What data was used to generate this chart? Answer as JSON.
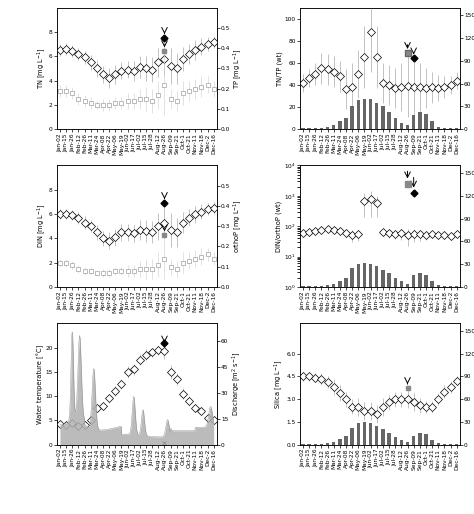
{
  "x_labels": [
    "Jan-02",
    "Jan-15",
    "Jan-26",
    "Feb-12",
    "Feb-26",
    "Mar-11",
    "Mar-24",
    "Apr-08",
    "Apr-22",
    "May-06",
    "May-19",
    "Jun-02",
    "Jun-17",
    "Jul-02",
    "Jul-15",
    "Jul-28",
    "Aug-12",
    "Aug-26",
    "Sep-09",
    "Sep-21",
    "Oct-1",
    "Oct-21",
    "Nov-11",
    "Nov-18",
    "Dec-2",
    "Dec-16"
  ],
  "n": 26,
  "TN": [
    6.5,
    6.6,
    6.4,
    6.2,
    5.9,
    5.5,
    5.0,
    4.5,
    4.2,
    4.5,
    4.8,
    4.9,
    4.8,
    5.1,
    5.0,
    4.9,
    5.5,
    5.8,
    5.2,
    5.0,
    5.8,
    6.2,
    6.5,
    6.8,
    7.0,
    7.2
  ],
  "TN_err": [
    0.5,
    0.5,
    0.5,
    0.5,
    0.5,
    0.6,
    0.7,
    0.7,
    0.8,
    0.8,
    0.7,
    0.7,
    0.8,
    0.9,
    1.0,
    1.0,
    1.2,
    1.4,
    1.5,
    1.3,
    1.0,
    0.8,
    0.8,
    0.7,
    0.6,
    0.5
  ],
  "TP": [
    0.19,
    0.19,
    0.18,
    0.15,
    0.14,
    0.13,
    0.12,
    0.12,
    0.12,
    0.13,
    0.13,
    0.14,
    0.14,
    0.15,
    0.15,
    0.14,
    0.17,
    0.22,
    0.15,
    0.14,
    0.18,
    0.19,
    0.2,
    0.21,
    0.22,
    0.2
  ],
  "TP_err": [
    0.03,
    0.03,
    0.03,
    0.03,
    0.03,
    0.03,
    0.02,
    0.03,
    0.03,
    0.03,
    0.03,
    0.04,
    0.04,
    0.05,
    0.06,
    0.06,
    0.07,
    0.15,
    0.05,
    0.05,
    0.06,
    0.05,
    0.05,
    0.05,
    0.04,
    0.04
  ],
  "DIN": [
    6.0,
    6.0,
    5.9,
    5.7,
    5.3,
    5.0,
    4.5,
    4.0,
    3.8,
    4.1,
    4.5,
    4.5,
    4.4,
    4.7,
    4.6,
    4.5,
    5.0,
    5.3,
    4.7,
    4.5,
    5.3,
    5.7,
    6.0,
    6.2,
    6.4,
    6.5
  ],
  "DIN_err": [
    0.4,
    0.4,
    0.4,
    0.5,
    0.5,
    0.5,
    0.6,
    0.6,
    0.7,
    0.7,
    0.7,
    0.7,
    0.7,
    0.8,
    0.9,
    0.9,
    1.1,
    1.3,
    1.4,
    1.2,
    0.9,
    0.7,
    0.7,
    0.6,
    0.5,
    0.5
  ],
  "orthoP": [
    0.12,
    0.12,
    0.11,
    0.09,
    0.08,
    0.08,
    0.07,
    0.07,
    0.07,
    0.08,
    0.08,
    0.08,
    0.08,
    0.09,
    0.09,
    0.09,
    0.11,
    0.14,
    0.1,
    0.09,
    0.12,
    0.13,
    0.14,
    0.15,
    0.16,
    0.14
  ],
  "orthoP_err": [
    0.02,
    0.02,
    0.02,
    0.02,
    0.02,
    0.02,
    0.01,
    0.02,
    0.02,
    0.02,
    0.02,
    0.03,
    0.03,
    0.04,
    0.05,
    0.05,
    0.06,
    0.1,
    0.04,
    0.04,
    0.05,
    0.04,
    0.04,
    0.04,
    0.03,
    0.03
  ],
  "WaterTemp": [
    4.2,
    4.0,
    4.5,
    3.8,
    4.0,
    5.0,
    7.5,
    8.0,
    9.5,
    11.0,
    12.5,
    15.0,
    15.5,
    17.5,
    18.5,
    19.0,
    19.5,
    19.2,
    15.0,
    13.5,
    10.5,
    9.0,
    7.5,
    7.0,
    5.5,
    5.0
  ],
  "WaterTemp_err": [
    0.3,
    0.3,
    0.4,
    0.3,
    0.4,
    0.5,
    0.8,
    0.8,
    0.9,
    1.0,
    1.1,
    1.2,
    1.2,
    1.2,
    1.1,
    1.0,
    1.0,
    1.5,
    1.4,
    1.3,
    1.1,
    1.0,
    0.8,
    0.7,
    0.5,
    0.4
  ],
  "TNTP": [
    42,
    46,
    50,
    55,
    54,
    52,
    48,
    36,
    38,
    50,
    65,
    88,
    65,
    42,
    40,
    37,
    38,
    39,
    38,
    38,
    37,
    38,
    37,
    38,
    40,
    44
  ],
  "TNTP_err": [
    8,
    8,
    10,
    14,
    14,
    14,
    14,
    18,
    22,
    22,
    28,
    36,
    28,
    18,
    18,
    18,
    22,
    28,
    24,
    22,
    18,
    14,
    12,
    10,
    8,
    8
  ],
  "Chla_TNTP": [
    1,
    1,
    1,
    1,
    3,
    6,
    10,
    15,
    30,
    38,
    40,
    40,
    35,
    30,
    22,
    15,
    8,
    5,
    18,
    22,
    20,
    10,
    3,
    1,
    1,
    1
  ],
  "DINorthoP": [
    60,
    65,
    68,
    75,
    78,
    75,
    70,
    58,
    52,
    55,
    700,
    800,
    600,
    65,
    58,
    55,
    58,
    52,
    55,
    55,
    52,
    55,
    52,
    50,
    48,
    55
  ],
  "DINorthoP_err": [
    10,
    12,
    12,
    16,
    14,
    14,
    14,
    18,
    22,
    22,
    500,
    600,
    400,
    18,
    18,
    18,
    22,
    30,
    26,
    22,
    18,
    14,
    12,
    10,
    8,
    8
  ],
  "Chla_DINorthoP": [
    1,
    1,
    1,
    1,
    2,
    4,
    8,
    12,
    25,
    30,
    32,
    30,
    28,
    22,
    18,
    12,
    8,
    4,
    15,
    18,
    16,
    8,
    2,
    1,
    1,
    1
  ],
  "Silica": [
    4.5,
    4.5,
    4.4,
    4.3,
    4.1,
    3.8,
    3.4,
    3.0,
    2.5,
    2.5,
    2.2,
    2.2,
    2.0,
    2.5,
    2.8,
    3.0,
    3.0,
    3.0,
    2.8,
    2.6,
    2.5,
    2.5,
    3.0,
    3.5,
    3.8,
    4.2
  ],
  "Silica_err": [
    0.3,
    0.3,
    0.3,
    0.4,
    0.4,
    0.5,
    0.5,
    0.5,
    0.5,
    0.6,
    0.6,
    0.6,
    0.6,
    0.6,
    0.5,
    0.5,
    0.5,
    0.6,
    0.6,
    0.5,
    0.4,
    0.4,
    0.4,
    0.4,
    0.4,
    0.3
  ],
  "Chla_Silica": [
    1,
    1,
    1,
    1,
    2,
    4,
    8,
    12,
    22,
    28,
    30,
    28,
    25,
    20,
    15,
    10,
    6,
    4,
    12,
    15,
    14,
    6,
    2,
    1,
    1,
    1
  ],
  "special_TN_idx": 17,
  "special_TP_idx": 17,
  "special_DIN_idx": 17,
  "special_orthoP_idx": 17,
  "special_WT_idx": 17,
  "special_TNTP_idx1": 17,
  "special_TNTP_idx2": 18,
  "special_DINorthoP_idx1": 17,
  "special_DINorthoP_idx2": 18,
  "special_Sil_idx": 17
}
